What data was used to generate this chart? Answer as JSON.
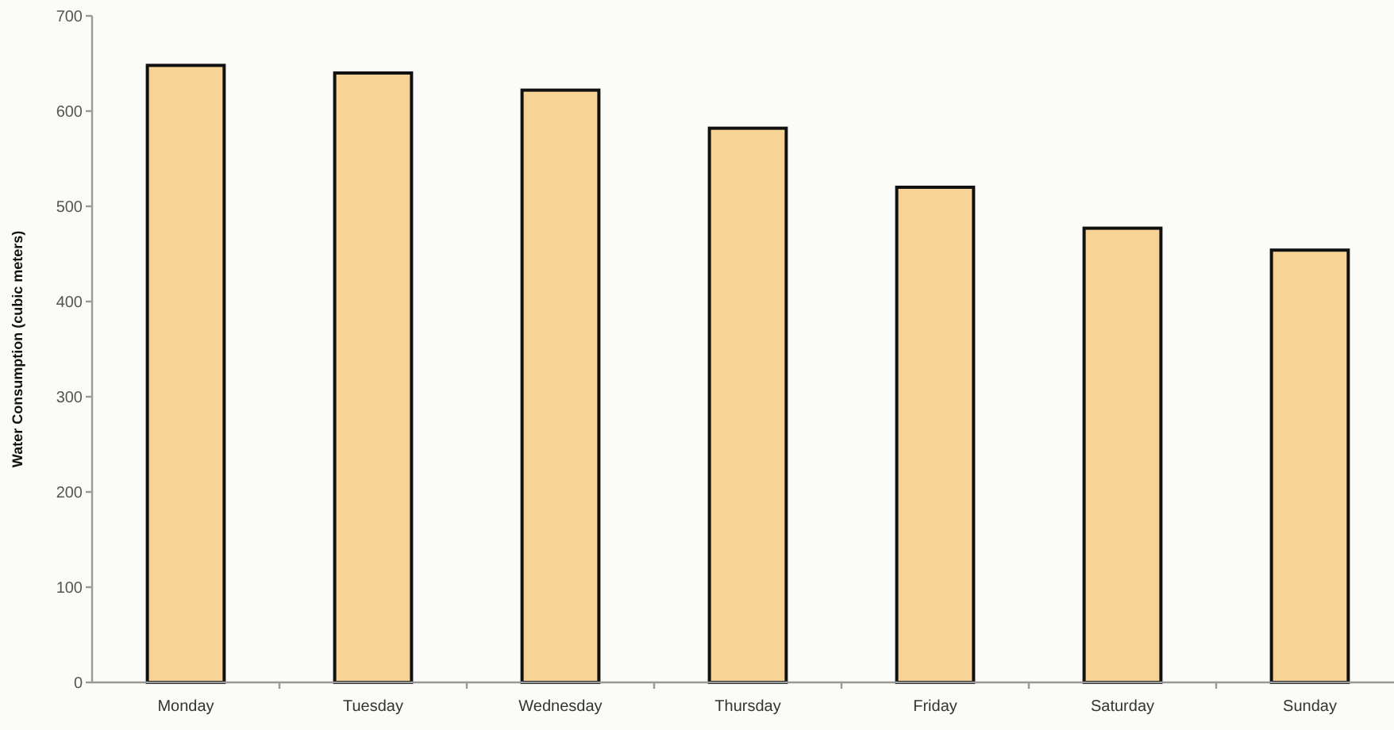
{
  "chart_data": {
    "type": "bar",
    "ylabel": "Water Consumption (cubic meters)",
    "categories": [
      "Monday",
      "Tuesday",
      "Wednesday",
      "Thursday",
      "Friday",
      "Saturday",
      "Sunday"
    ],
    "values": [
      648,
      640,
      622,
      582,
      520,
      477,
      454
    ],
    "color": "#f7d396",
    "ylim": [
      0,
      700
    ],
    "yticks": [
      0,
      100,
      200,
      300,
      400,
      500,
      600,
      700
    ]
  }
}
